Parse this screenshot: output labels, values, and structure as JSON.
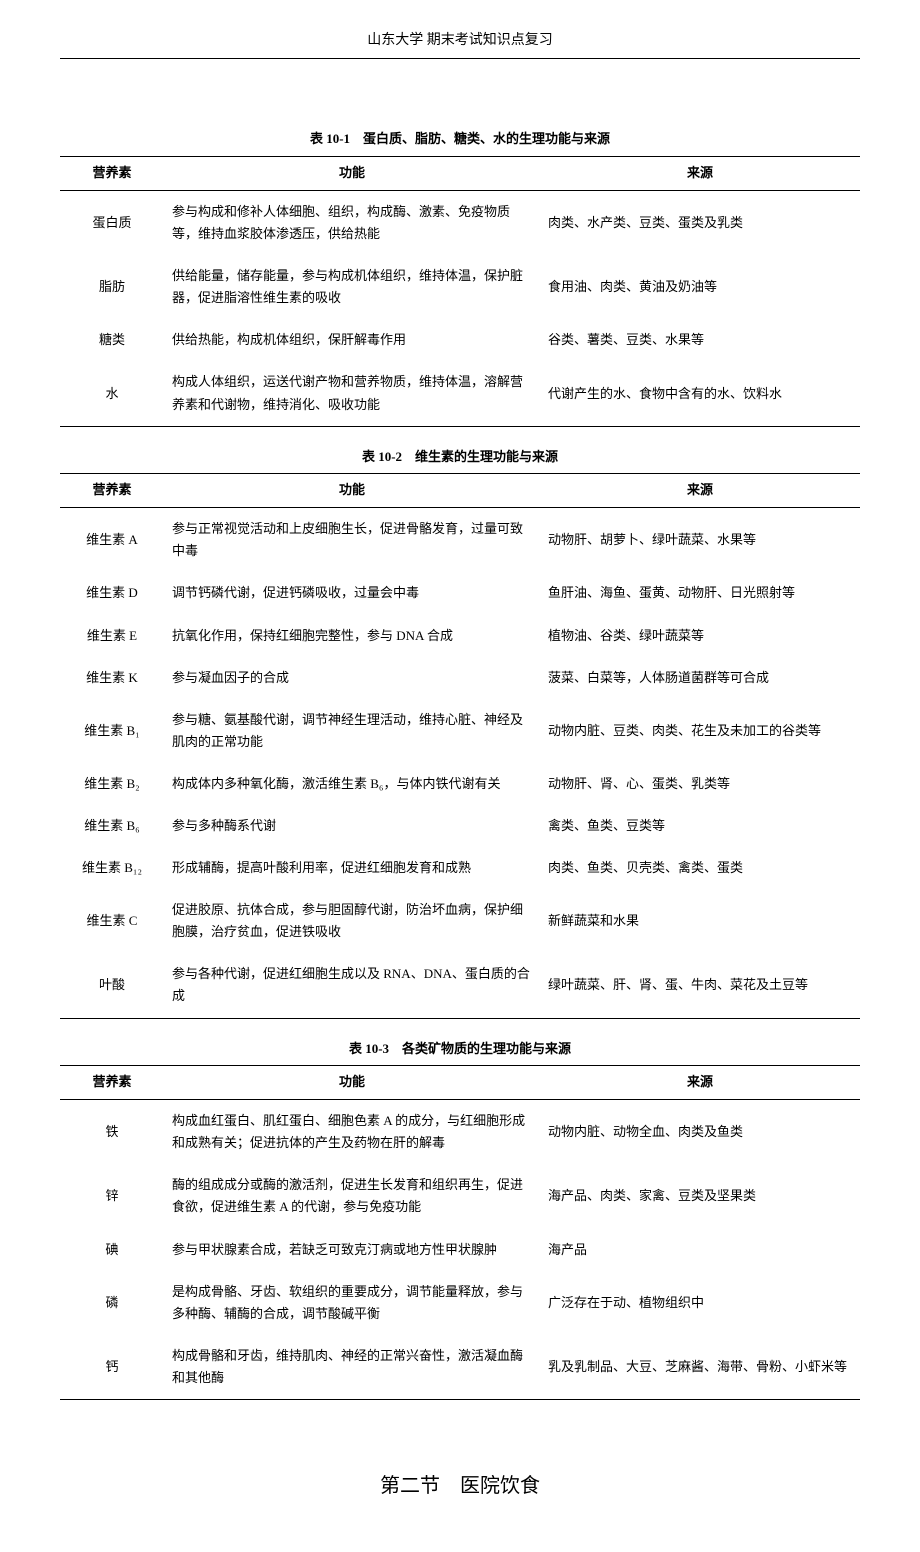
{
  "header": "山东大学 期末考试知识点复习",
  "table1": {
    "caption": "表 10-1　蛋白质、脂肪、糖类、水的生理功能与来源",
    "columns": [
      "营养素",
      "功能",
      "来源"
    ],
    "rows": [
      {
        "nutrient": "蛋白质",
        "function": "参与构成和修补人体细胞、组织，构成酶、激素、免疫物质等，维持血浆胶体渗透压，供给热能",
        "source": "肉类、水产类、豆类、蛋类及乳类"
      },
      {
        "nutrient": "脂肪",
        "function": "供给能量，储存能量，参与构成机体组织，维持体温，保护脏器，促进脂溶性维生素的吸收",
        "source": "食用油、肉类、黄油及奶油等"
      },
      {
        "nutrient": "糖类",
        "function": "供给热能，构成机体组织，保肝解毒作用",
        "source": "谷类、薯类、豆类、水果等"
      },
      {
        "nutrient": "水",
        "function": "构成人体组织，运送代谢产物和营养物质，维持体温，溶解营养素和代谢物，维持消化、吸收功能",
        "source": "代谢产生的水、食物中含有的水、饮料水"
      }
    ]
  },
  "table2": {
    "caption": "表 10-2　维生素的生理功能与来源",
    "columns": [
      "营养素",
      "功能",
      "来源"
    ],
    "rows": [
      {
        "nutrient": "维生素 A",
        "function": "参与正常视觉活动和上皮细胞生长，促进骨骼发育，过量可致中毒",
        "source": "动物肝、胡萝卜、绿叶蔬菜、水果等"
      },
      {
        "nutrient": "维生素 D",
        "function": "调节钙磷代谢，促进钙磷吸收，过量会中毒",
        "source": "鱼肝油、海鱼、蛋黄、动物肝、日光照射等"
      },
      {
        "nutrient": "维生素 E",
        "function": "抗氧化作用，保持红细胞完整性，参与 DNA 合成",
        "source": "植物油、谷类、绿叶蔬菜等"
      },
      {
        "nutrient": "维生素 K",
        "function": "参与凝血因子的合成",
        "source": "菠菜、白菜等，人体肠道菌群等可合成"
      },
      {
        "nutrient": "维生素 B₁",
        "function": "参与糖、氨基酸代谢，调节神经生理活动，维持心脏、神经及肌肉的正常功能",
        "source": "动物内脏、豆类、肉类、花生及未加工的谷类等"
      },
      {
        "nutrient": "维生素 B₂",
        "function": "构成体内多种氧化酶，激活维生素 B₆，与体内铁代谢有关",
        "source": "动物肝、肾、心、蛋类、乳类等"
      },
      {
        "nutrient": "维生素 B₆",
        "function": "参与多种酶系代谢",
        "source": "禽类、鱼类、豆类等"
      },
      {
        "nutrient": "维生素 B₁₂",
        "function": "形成辅酶，提高叶酸利用率，促进红细胞发育和成熟",
        "source": "肉类、鱼类、贝壳类、禽类、蛋类"
      },
      {
        "nutrient": "维生素 C",
        "function": "促进胶原、抗体合成，参与胆固醇代谢，防治坏血病，保护细胞膜，治疗贫血，促进铁吸收",
        "source": "新鲜蔬菜和水果"
      },
      {
        "nutrient": "叶酸",
        "function": "参与各种代谢，促进红细胞生成以及 RNA、DNA、蛋白质的合成",
        "source": "绿叶蔬菜、肝、肾、蛋、牛肉、菜花及土豆等"
      }
    ]
  },
  "table3": {
    "caption": "表 10-3　各类矿物质的生理功能与来源",
    "columns": [
      "营养素",
      "功能",
      "来源"
    ],
    "rows": [
      {
        "nutrient": "铁",
        "function": "构成血红蛋白、肌红蛋白、细胞色素 A 的成分，与红细胞形成和成熟有关；促进抗体的产生及药物在肝的解毒",
        "source": "动物内脏、动物全血、肉类及鱼类"
      },
      {
        "nutrient": "锌",
        "function": "酶的组成成分或酶的激活剂，促进生长发育和组织再生，促进食欲，促进维生素 A 的代谢，参与免疫功能",
        "source": "海产品、肉类、家禽、豆类及坚果类"
      },
      {
        "nutrient": "碘",
        "function": "参与甲状腺素合成，若缺乏可致克汀病或地方性甲状腺肿",
        "source": "海产品"
      },
      {
        "nutrient": "磷",
        "function": "是构成骨骼、牙齿、软组织的重要成分，调节能量释放，参与多种酶、辅酶的合成，调节酸碱平衡",
        "source": "广泛存在于动、植物组织中"
      },
      {
        "nutrient": "钙",
        "function": "构成骨骼和牙齿，维持肌肉、神经的正常兴奋性，激活凝血酶和其他酶",
        "source": "乳及乳制品、大豆、芝麻酱、海带、骨粉、小虾米等"
      }
    ]
  },
  "sectionTitle": "第二节　医院饮食",
  "style": {
    "background": "#ffffff",
    "text_color": "#000000",
    "border_color": "#000000",
    "body_font_size": 13,
    "caption_font_size": 13,
    "header_font_size": 14,
    "section_title_font_size": 20
  }
}
